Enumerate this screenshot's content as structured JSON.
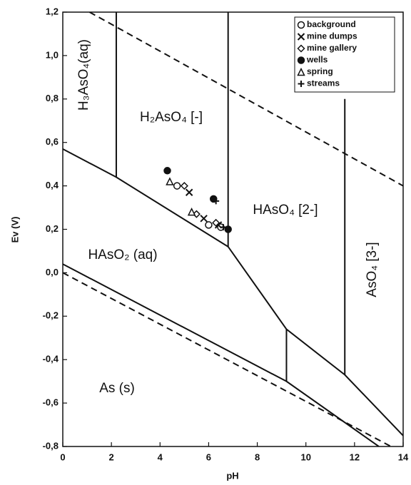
{
  "chart_data": {
    "type": "scatter",
    "xlabel": "pH",
    "ylabel": "Ev (V)",
    "xlim": [
      0,
      14
    ],
    "ylim": [
      -0.8,
      1.2
    ],
    "xticks": [
      0,
      2,
      4,
      6,
      8,
      10,
      12,
      14
    ],
    "yticks": [
      {
        "value": -0.8,
        "label": "-0,8"
      },
      {
        "value": -0.6,
        "label": "-0,6"
      },
      {
        "value": -0.4,
        "label": "-0,4"
      },
      {
        "value": -0.2,
        "label": "-0,2"
      },
      {
        "value": 0,
        "label": "0,0"
      },
      {
        "value": 0.2,
        "label": "0,2"
      },
      {
        "value": 0.4,
        "label": "0,4"
      },
      {
        "value": 0.6,
        "label": "0,6"
      },
      {
        "value": 0.8,
        "label": "0,8"
      },
      {
        "value": 1.0,
        "label": "1,0"
      },
      {
        "value": 1.2,
        "label": "1,2"
      }
    ],
    "legend": "upper right",
    "boundaries": [
      {
        "style": "dashed",
        "x": [
          1.1,
          14
        ],
        "y": [
          1.2,
          0.4
        ]
      },
      {
        "style": "dashed",
        "x": [
          0,
          13.5
        ],
        "y": [
          0,
          -0.8
        ]
      },
      {
        "style": "solid",
        "x": [
          2.2,
          2.2
        ],
        "y": [
          1.2,
          0.44
        ]
      },
      {
        "style": "solid",
        "x": [
          6.8,
          6.8
        ],
        "y": [
          1.2,
          0.12
        ]
      },
      {
        "style": "solid",
        "x": [
          0,
          2.2,
          6.8,
          9.2,
          11.6,
          14
        ],
        "y": [
          0.57,
          0.44,
          0.12,
          -0.26,
          -0.47,
          -0.75
        ]
      },
      {
        "style": "solid",
        "x": [
          0,
          9.2,
          13
        ],
        "y": [
          0.04,
          -0.5,
          -0.8
        ]
      },
      {
        "style": "solid",
        "x": [
          9.2,
          9.2
        ],
        "y": [
          -0.26,
          -0.5
        ]
      },
      {
        "style": "solid",
        "x": [
          11.6,
          11.6
        ],
        "y": [
          0.8,
          -0.47
        ]
      }
    ],
    "regions": [
      "H₃AsO₄(aq)",
      "H₂AsO₄ [-]",
      "HAsO₄ [2-]",
      "AsO₄ [3-]",
      "HAsO₂ (aq)",
      "As (s)"
    ],
    "series": [
      {
        "name": "background",
        "marker": "circle-open",
        "color": "#111111",
        "x": [
          4.7,
          6.0,
          6.5
        ],
        "values": [
          0.4,
          0.22,
          0.21
        ]
      },
      {
        "name": "mine dumps",
        "marker": "x",
        "color": "#111111",
        "x": [
          5.2,
          5.8,
          6.4
        ],
        "values": [
          0.37,
          0.25,
          0.22
        ]
      },
      {
        "name": "mine gallery",
        "marker": "diamond-open",
        "color": "#111111",
        "x": [
          5.0,
          5.5,
          6.3
        ],
        "values": [
          0.4,
          0.27,
          0.23
        ]
      },
      {
        "name": "wells",
        "marker": "circle",
        "color": "#111111",
        "x": [
          4.3,
          6.2,
          6.8
        ],
        "values": [
          0.47,
          0.34,
          0.2
        ]
      },
      {
        "name": "spring",
        "marker": "triangle-open",
        "color": "#111111",
        "x": [
          4.4,
          5.3
        ],
        "values": [
          0.42,
          0.28
        ]
      },
      {
        "name": "streams",
        "marker": "plus",
        "color": "#111111",
        "x": [
          6.3,
          6.6
        ],
        "values": [
          0.33,
          0.21
        ]
      }
    ]
  }
}
